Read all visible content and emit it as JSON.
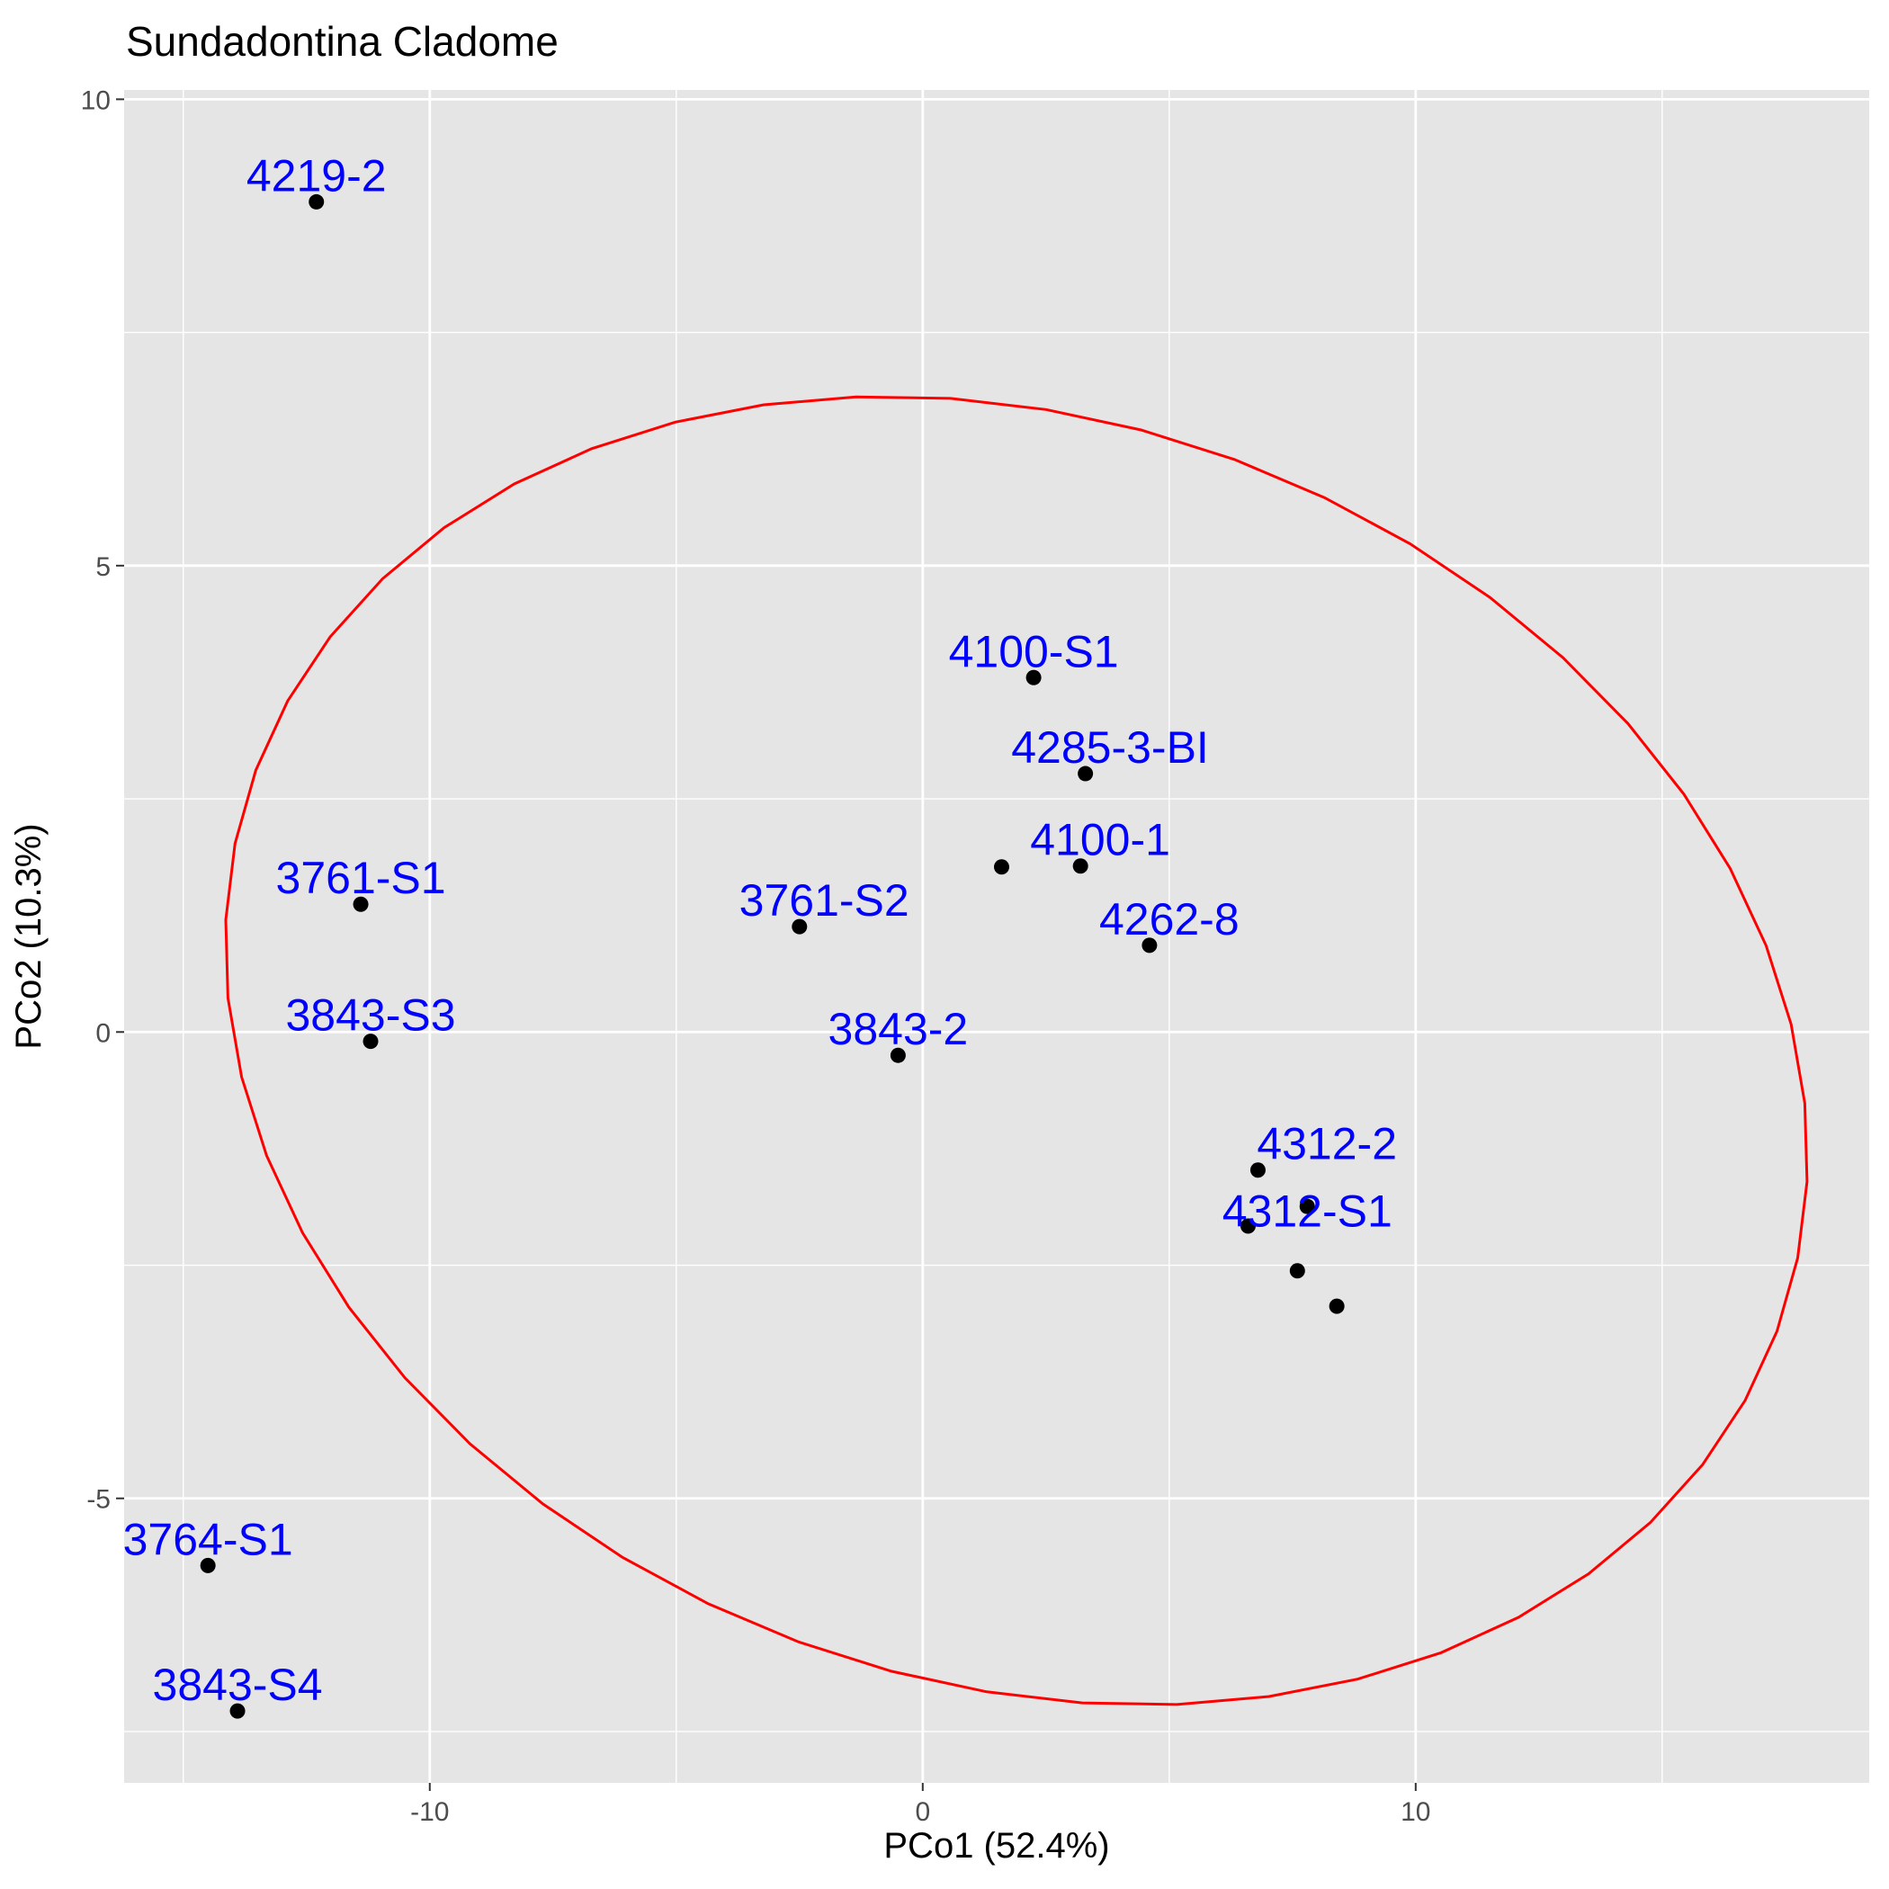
{
  "chart_data": {
    "type": "scatter",
    "title": "Sundadontina Cladome",
    "xlabel": "PCo1 (52.4%)",
    "ylabel": "PCo2 (10.3%)",
    "xlim": [
      -16.2,
      19.2
    ],
    "ylim": [
      -8.05,
      10.1
    ],
    "x_ticks": [
      -10,
      0,
      10
    ],
    "y_ticks": [
      -5,
      0,
      5,
      10
    ],
    "x_tick_labels": [
      "-10",
      "0",
      "10"
    ],
    "y_tick_labels": [
      "-5",
      "0",
      "5",
      "10"
    ],
    "grid": true,
    "legend": "none",
    "colors": {
      "panel": "#e5e5e5",
      "grid": "#ffffff",
      "point": "#000000",
      "label": "#0000ff",
      "ellipse": "#ff0000",
      "tick": "#4d4d4d"
    },
    "points": [
      {
        "x": -12.3,
        "y": 8.9
      },
      {
        "x": -11.4,
        "y": 1.37
      },
      {
        "x": -11.2,
        "y": -0.1
      },
      {
        "x": -2.5,
        "y": 1.13
      },
      {
        "x": -0.5,
        "y": -0.25
      },
      {
        "x": 1.6,
        "y": 1.77
      },
      {
        "x": 2.25,
        "y": 3.8
      },
      {
        "x": 3.2,
        "y": 1.78
      },
      {
        "x": 3.3,
        "y": 2.77
      },
      {
        "x": 4.6,
        "y": 0.93
      },
      {
        "x": 6.8,
        "y": -1.48
      },
      {
        "x": 6.6,
        "y": -2.08
      },
      {
        "x": 7.8,
        "y": -1.87
      },
      {
        "x": 7.6,
        "y": -2.56
      },
      {
        "x": 8.4,
        "y": -2.94
      },
      {
        "x": -14.5,
        "y": -5.72
      },
      {
        "x": -13.9,
        "y": -7.28
      }
    ],
    "point_labels": [
      {
        "text": "4219-2",
        "x": -12.3,
        "y": 8.9
      },
      {
        "text": "3761-S1",
        "x": -11.4,
        "y": 1.37
      },
      {
        "text": "3843-S3",
        "x": -11.2,
        "y": -0.1
      },
      {
        "text": "3761-S2",
        "x": -2.0,
        "y": 1.13
      },
      {
        "text": "3843-2",
        "x": -0.5,
        "y": -0.25
      },
      {
        "text": "4100-S1",
        "x": 2.25,
        "y": 3.8
      },
      {
        "text": "4285-3-BI",
        "x": 3.8,
        "y": 2.77
      },
      {
        "text": "4100-1",
        "x": 3.6,
        "y": 1.78
      },
      {
        "text": "4262-8",
        "x": 5.0,
        "y": 0.93
      },
      {
        "text": "4312-2",
        "x": 8.2,
        "y": -1.48
      },
      {
        "text": "4312-S1",
        "x": 7.8,
        "y": -2.2
      },
      {
        "text": "3764-S1",
        "x": -14.5,
        "y": -5.72
      },
      {
        "text": "3843-S4",
        "x": -13.9,
        "y": -7.28
      }
    ],
    "ellipse": {
      "cx": 1.9,
      "cy": -0.2,
      "rx": 16.1,
      "ry": 6.9,
      "tilt_deg": -5
    }
  }
}
